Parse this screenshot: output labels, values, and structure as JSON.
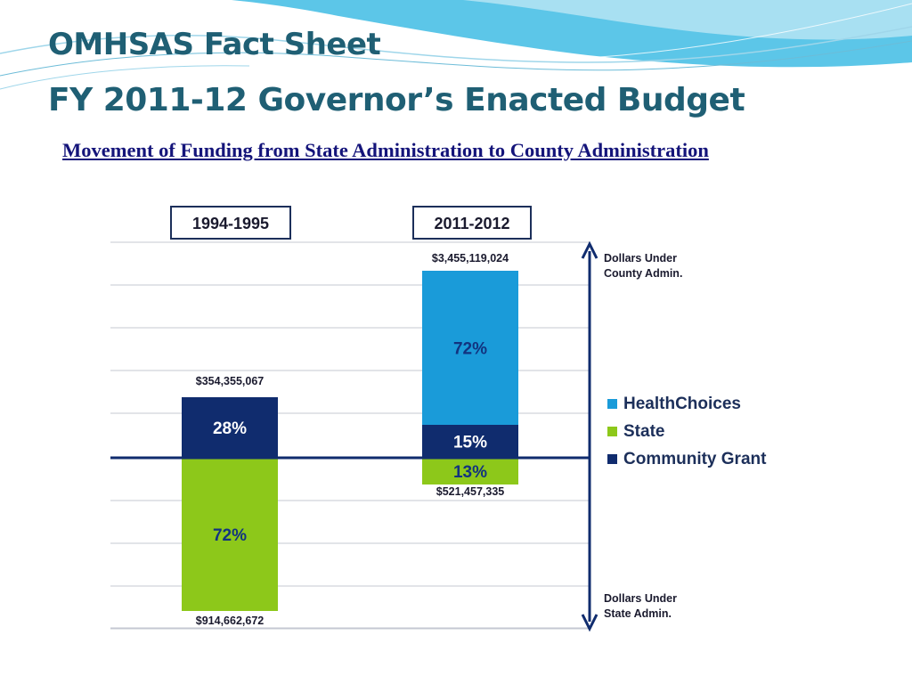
{
  "slide": {
    "title_line1": "OMHSAS Fact Sheet",
    "title_line2": "FY 2011-12 Governor’s Enacted Budget",
    "subtitle": "Movement of Funding from State Administration to County Administration"
  },
  "chart_data": {
    "type": "bar",
    "stacked": true,
    "diverging": true,
    "categories": [
      "1994-1995",
      "2011-2012"
    ],
    "series": [
      {
        "name": "HealthChoices",
        "color": "#1a9bd9",
        "direction": "above",
        "percents": [
          "",
          "72%"
        ]
      },
      {
        "name": "Community Grant",
        "color": "#102c6e",
        "direction": "above",
        "percents": [
          "28%",
          "15%"
        ]
      },
      {
        "name": "State",
        "color": "#8dc81a",
        "direction": "below",
        "percents": [
          "72%",
          "13%"
        ]
      }
    ],
    "totals_above": [
      "$354,355,067",
      "$3,455,119,024"
    ],
    "totals_below": [
      "$914,662,672",
      "$521,457,335"
    ],
    "legend_items": [
      "HealthChoices",
      "State",
      "Community Grant"
    ],
    "legend_colors": [
      "#1a9bd9",
      "#8dc81a",
      "#102c6e"
    ],
    "legend_position": "right",
    "axis_annotation_top": [
      "Dollars Under",
      "County Admin."
    ],
    "axis_annotation_bottom": [
      "Dollars Under",
      "State Admin."
    ],
    "grid": true
  }
}
